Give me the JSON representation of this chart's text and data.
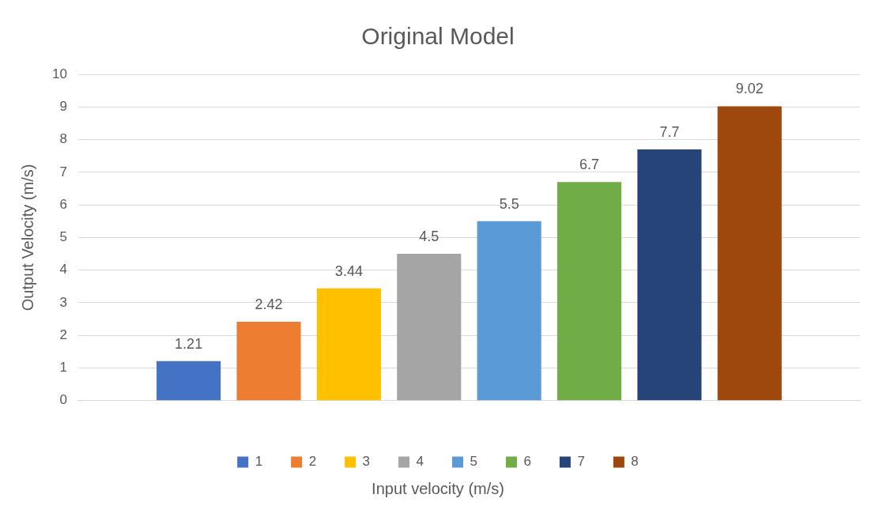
{
  "chart_data": {
    "type": "bar",
    "title": "Original Model",
    "xlabel": "Input velocity (m/s)",
    "ylabel": "Output Velocity (m/s)",
    "categories": [
      null
    ],
    "series": [
      {
        "name": "1",
        "color": "#4472c4",
        "values": [
          1.21
        ]
      },
      {
        "name": "2",
        "color": "#ed7d31",
        "values": [
          2.42
        ]
      },
      {
        "name": "3",
        "color": "#ffc000",
        "values": [
          3.44
        ]
      },
      {
        "name": "4",
        "color": "#a5a5a5",
        "values": [
          4.5
        ]
      },
      {
        "name": "5",
        "color": "#5b9bd5",
        "values": [
          5.5
        ]
      },
      {
        "name": "6",
        "color": "#70ad47",
        "values": [
          6.7
        ]
      },
      {
        "name": "7",
        "color": "#264478",
        "values": [
          7.7
        ]
      },
      {
        "name": "8",
        "color": "#9e480e",
        "values": [
          9.02
        ]
      }
    ],
    "ylim": [
      0,
      10
    ],
    "yticks": [
      0,
      1,
      2,
      3,
      4,
      5,
      6,
      7,
      8,
      9,
      10
    ],
    "grid": "y",
    "legend": "bottom",
    "data_labels": true
  }
}
